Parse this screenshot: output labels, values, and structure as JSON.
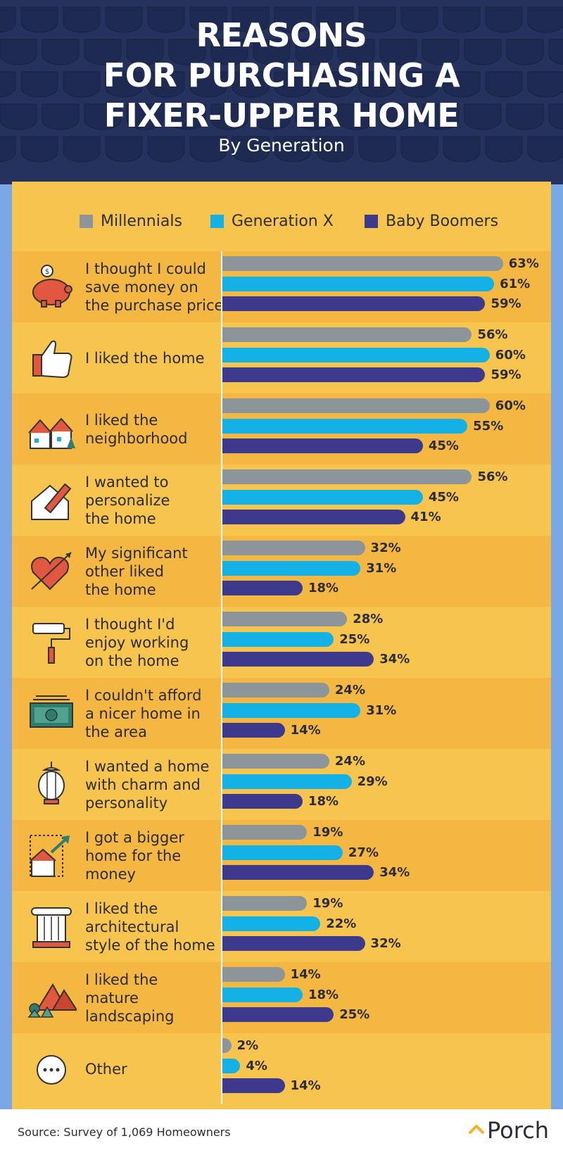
{
  "header": {
    "title_line1": "REASONS",
    "title_line2": "FOR PURCHASING A",
    "title_line3": "FIXER-UPPER HOME",
    "subtitle": "By Generation"
  },
  "footer": {
    "source": "Source: Survey of 1,069 Homeowners",
    "brand": "Porch"
  },
  "colors": {
    "millennials": "#8c9599",
    "gen_x": "#14b1e7",
    "boomers": "#3d3a8e",
    "roof": "#26325e",
    "wall": "#f7c44e",
    "wall_alt": "#f3b742"
  },
  "chart_data": {
    "type": "bar",
    "orientation": "horizontal",
    "title": "REASONS FOR PURCHASING A FIXER-UPPER HOME",
    "subtitle": "By Generation",
    "unit": "%",
    "legend_position": "top",
    "categories": [
      "I thought I could save money on the purchase price",
      "I liked the home",
      "I liked the neighborhood",
      "I wanted to personalize the home",
      "My significant other liked the home",
      "I thought I'd enjoy working on the home",
      "I couldn't afford a nicer home in the area",
      "I wanted a home with charm and personality",
      "I got a bigger home for the money",
      "I liked the architectural style of the home",
      "I liked the mature landscaping",
      "Other"
    ],
    "labels_display": [
      [
        "I thought I could",
        "save money on",
        "the purchase price"
      ],
      [
        "I liked the home"
      ],
      [
        "I liked the",
        "neighborhood"
      ],
      [
        "I wanted to",
        "personalize",
        "the home"
      ],
      [
        "My significant",
        "other liked",
        "the home"
      ],
      [
        "I thought I'd",
        "enjoy working",
        "on the home"
      ],
      [
        "I couldn't afford",
        "a nicer home in",
        "the area"
      ],
      [
        "I wanted a home",
        "with charm and",
        "personality"
      ],
      [
        "I got a bigger",
        "home for the",
        "money"
      ],
      [
        "I liked the",
        "architectural",
        "style of the home"
      ],
      [
        "I liked the",
        "mature",
        "landscaping"
      ],
      [
        "Other"
      ]
    ],
    "icons": [
      "piggy-bank-icon",
      "thumbs-up-icon",
      "neighborhood-houses-icon",
      "house-pencil-icon",
      "heart-arrow-icon",
      "paint-roller-icon",
      "money-bill-icon",
      "lantern-icon",
      "house-arrow-icon",
      "column-icon",
      "mountains-trees-icon",
      "more-dots-icon"
    ],
    "series": [
      {
        "name": "Millennials",
        "values": [
          63,
          56,
          60,
          56,
          32,
          28,
          24,
          24,
          19,
          19,
          14,
          2
        ]
      },
      {
        "name": "Generation X",
        "values": [
          61,
          60,
          55,
          45,
          31,
          25,
          31,
          29,
          27,
          22,
          18,
          4
        ]
      },
      {
        "name": "Baby Boomers",
        "values": [
          59,
          59,
          45,
          41,
          18,
          34,
          14,
          18,
          34,
          32,
          25,
          14
        ]
      }
    ]
  }
}
